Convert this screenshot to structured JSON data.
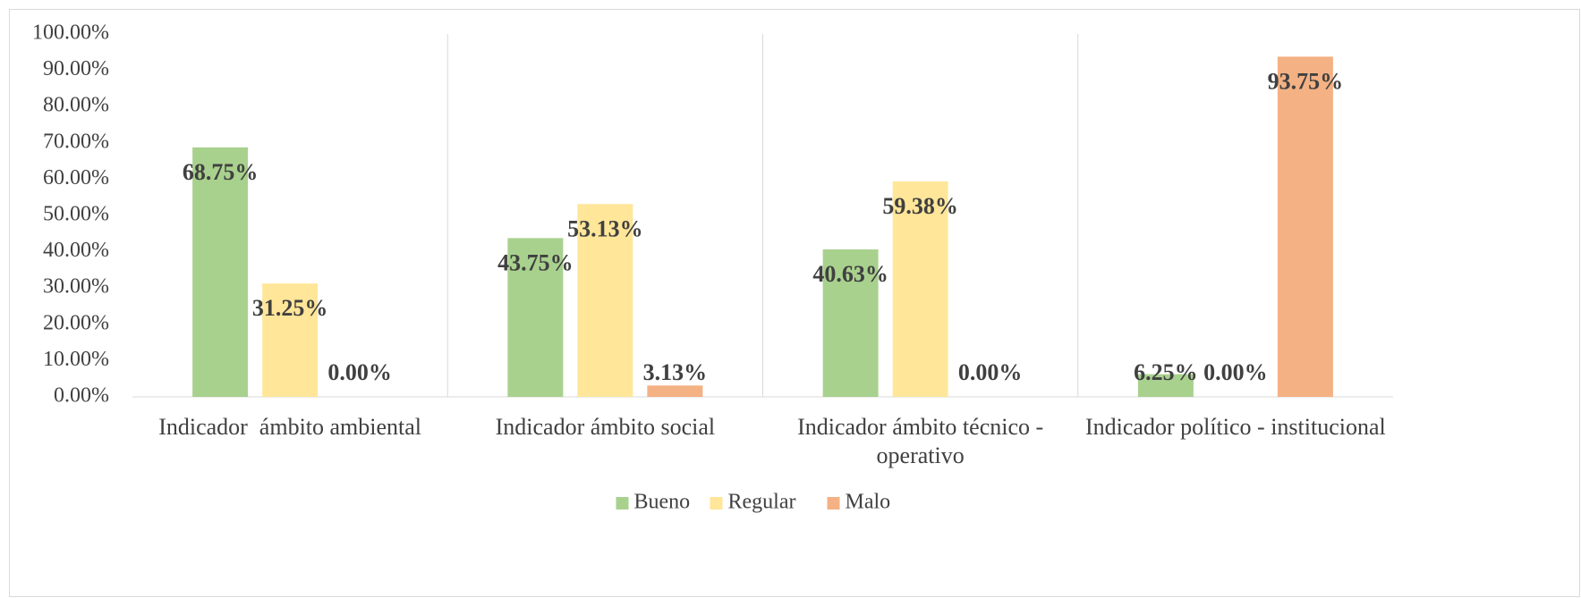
{
  "chart_data": {
    "type": "bar",
    "categories": [
      "Indicador  ámbito ambiental",
      "Indicador ámbito social",
      "Indicador ámbito técnico - operativo",
      "Indicador político - institucional"
    ],
    "series": [
      {
        "name": "Bueno",
        "color": "#a9d18e",
        "values": [
          68.75,
          43.75,
          40.63,
          6.25
        ],
        "value_labels": [
          "68.75%",
          "43.75%",
          "40.63%",
          "6.25%"
        ]
      },
      {
        "name": "Regular",
        "color": "#ffe699",
        "values": [
          31.25,
          53.13,
          59.38,
          0
        ],
        "value_labels": [
          "31.25%",
          "53.13%",
          "59.38%",
          "0.00%"
        ]
      },
      {
        "name": "Malo",
        "color": "#f4b183",
        "values": [
          0,
          3.13,
          0,
          93.75
        ],
        "value_labels": [
          "0.00%",
          "3.13%",
          "0.00%",
          "93.75%"
        ]
      }
    ],
    "ylim": [
      0,
      100
    ],
    "yticks": [
      {
        "value": 0,
        "label": "0.00%"
      },
      {
        "value": 10,
        "label": "10.00%"
      },
      {
        "value": 20,
        "label": "20.00%"
      },
      {
        "value": 30,
        "label": "30.00%"
      },
      {
        "value": 40,
        "label": "40.00%"
      },
      {
        "value": 50,
        "label": "50.00%"
      },
      {
        "value": 60,
        "label": "60.00%"
      },
      {
        "value": 70,
        "label": "70.00%"
      },
      {
        "value": 80,
        "label": "80.00%"
      },
      {
        "value": 90,
        "label": "90.00%"
      },
      {
        "value": 100,
        "label": "100.00%"
      }
    ],
    "legend": "bottom"
  }
}
